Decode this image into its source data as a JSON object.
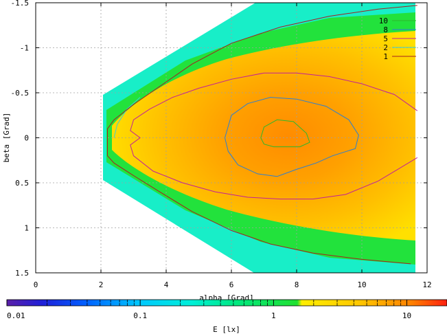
{
  "chart_data": {
    "type": "heatmap",
    "title": "",
    "xlabel": "alpha [Grad]",
    "ylabel": "beta [Grad]",
    "colorbar_label": "E [lx]",
    "xlim": [
      0,
      12
    ],
    "ylim": [
      -1.5,
      1.5
    ],
    "y_inverted": true,
    "grid": true,
    "x_ticks": [
      "0",
      "2",
      "4",
      "6",
      "8",
      "10",
      "12"
    ],
    "y_ticks": [
      "-1.5",
      "-1",
      "-0.5",
      "0",
      "0.5",
      "1",
      "1.5"
    ],
    "colorbar_scale": "log",
    "colorbar_range": [
      0.01,
      20
    ],
    "colorbar_ticks": [
      "0.01",
      "0.1",
      "1",
      "10"
    ],
    "legend_position": "top-right",
    "contours": [
      {
        "level": "10",
        "color": "#2db82d",
        "points": [
          [
            6.9,
            0.0
          ],
          [
            7.0,
            -0.12
          ],
          [
            7.4,
            -0.2
          ],
          [
            7.9,
            -0.18
          ],
          [
            8.3,
            -0.05
          ],
          [
            8.4,
            0.05
          ],
          [
            8.1,
            0.1
          ],
          [
            7.6,
            0.1
          ],
          [
            7.3,
            0.1
          ],
          [
            7.0,
            0.07
          ],
          [
            6.9,
            0.0
          ]
        ]
      },
      {
        "level": "8",
        "color": "#2a7fd4",
        "points": [
          [
            5.8,
            0.0
          ],
          [
            6.0,
            -0.25
          ],
          [
            6.5,
            -0.38
          ],
          [
            7.2,
            -0.45
          ],
          [
            8.0,
            -0.43
          ],
          [
            8.9,
            -0.35
          ],
          [
            9.6,
            -0.2
          ],
          [
            9.9,
            -0.03
          ],
          [
            9.8,
            0.12
          ],
          [
            9.1,
            0.2
          ],
          [
            8.6,
            0.28
          ],
          [
            8.0,
            0.35
          ],
          [
            7.4,
            0.43
          ],
          [
            6.8,
            0.4
          ],
          [
            6.2,
            0.3
          ],
          [
            5.9,
            0.15
          ],
          [
            5.8,
            0.0
          ]
        ]
      },
      {
        "level": "5",
        "color": "#c0209a",
        "points": [
          [
            11.7,
            -0.3
          ],
          [
            11.0,
            -0.48
          ],
          [
            10.0,
            -0.6
          ],
          [
            9.0,
            -0.68
          ],
          [
            8.0,
            -0.72
          ],
          [
            7.0,
            -0.72
          ],
          [
            6.0,
            -0.65
          ],
          [
            5.0,
            -0.55
          ],
          [
            4.2,
            -0.45
          ],
          [
            3.5,
            -0.32
          ],
          [
            3.0,
            -0.2
          ],
          [
            2.9,
            -0.08
          ],
          [
            3.2,
            0.0
          ],
          [
            2.9,
            0.08
          ],
          [
            3.0,
            0.2
          ],
          [
            3.6,
            0.37
          ],
          [
            4.5,
            0.5
          ],
          [
            5.5,
            0.6
          ],
          [
            6.5,
            0.66
          ],
          [
            7.5,
            0.68
          ],
          [
            8.5,
            0.68
          ],
          [
            9.5,
            0.63
          ],
          [
            10.5,
            0.48
          ],
          [
            11.1,
            0.35
          ],
          [
            11.7,
            0.22
          ]
        ]
      },
      {
        "level": "2",
        "color": "#3ad1d4",
        "points": [
          [
            2.4,
            0.0
          ],
          [
            2.5,
            -0.15
          ],
          [
            2.8,
            -0.32
          ],
          [
            3.2,
            -0.45
          ]
        ]
      },
      {
        "level": "1",
        "color": "#a52020",
        "points": [
          [
            11.7,
            -1.47
          ],
          [
            10.5,
            -1.43
          ],
          [
            9.0,
            -1.35
          ],
          [
            7.5,
            -1.23
          ],
          [
            6.0,
            -1.05
          ],
          [
            4.8,
            -0.82
          ],
          [
            3.8,
            -0.57
          ],
          [
            3.0,
            -0.37
          ],
          [
            2.4,
            -0.2
          ],
          [
            2.2,
            -0.1
          ],
          [
            2.2,
            -0.02
          ],
          [
            2.2,
            0.2
          ],
          [
            2.4,
            0.28
          ],
          [
            3.0,
            0.42
          ],
          [
            3.8,
            0.6
          ],
          [
            4.8,
            0.82
          ],
          [
            6.0,
            1.03
          ],
          [
            7.2,
            1.18
          ],
          [
            8.5,
            1.28
          ],
          [
            10.0,
            1.35
          ],
          [
            11.5,
            1.4
          ]
        ]
      }
    ],
    "colors": {
      "legend_10": "#2db82d",
      "legend_8": "#2a7fd4",
      "legend_5": "#c0209a",
      "legend_2": "#3ad1d4",
      "legend_1": "#a52020",
      "grid": "#a0a0a0",
      "axis": "#000000"
    }
  }
}
